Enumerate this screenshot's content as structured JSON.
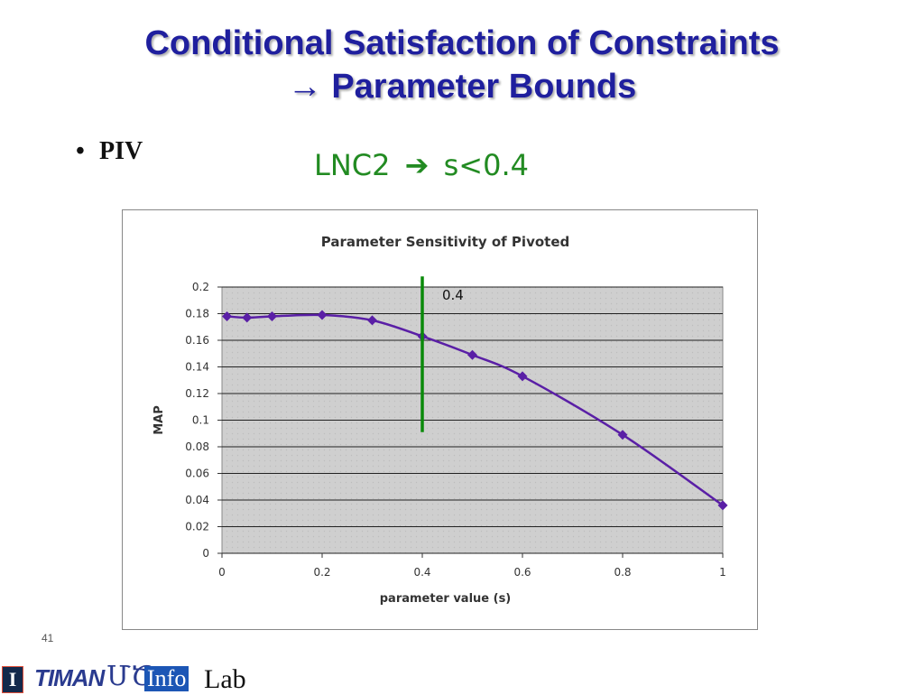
{
  "slide": {
    "title_line1": "Conditional Satisfaction of Constraints",
    "title_line2": "→ Parameter Bounds",
    "bullet_label": "PIV",
    "lnc_text": "LNC2",
    "lnc_arrow": "➔",
    "lnc_result": "s<0.4",
    "slide_number": "41",
    "colors": {
      "title": "#1f1f9e",
      "lnc": "#228b22",
      "series": "#5a1fa6",
      "marker_line": "#0a8a0a"
    }
  },
  "logos": {
    "illinois": "I",
    "timan": "TIMAN",
    "ud": "ՄԾ",
    "info": "Info",
    "lab": "Lab"
  },
  "chart_data": {
    "type": "line",
    "title": "Parameter Sensitivity of Pivoted",
    "xlabel": "parameter value (s)",
    "ylabel": "MAP",
    "xlim": [
      0,
      1
    ],
    "ylim": [
      0,
      0.2
    ],
    "x_ticks": [
      "0",
      "0.2",
      "0.4",
      "0.6",
      "0.8",
      "1"
    ],
    "y_ticks": [
      "0",
      "0.02",
      "0.04",
      "0.06",
      "0.08",
      "0.1",
      "0.12",
      "0.14",
      "0.16",
      "0.18",
      "0.2"
    ],
    "grid": true,
    "series": [
      {
        "x": [
          0.01,
          0.05,
          0.1,
          0.2,
          0.3,
          0.4,
          0.5,
          0.6,
          0.8,
          1.0
        ],
        "y": [
          0.178,
          0.177,
          0.178,
          0.179,
          0.175,
          0.163,
          0.149,
          0.133,
          0.089,
          0.036
        ]
      }
    ],
    "annotation": {
      "x": 0.4,
      "label": "0.4",
      "y_from": 0.091,
      "y_to": 0.208
    }
  }
}
